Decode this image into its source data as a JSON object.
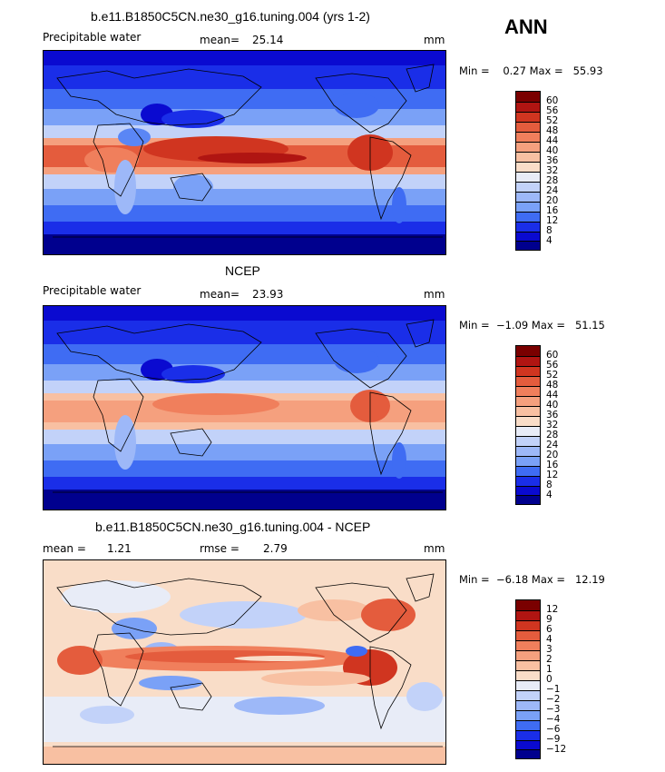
{
  "season": "ANN",
  "colors": {
    "blue_scale": [
      "#00008e",
      "#0a0ad0",
      "#1a2ee8",
      "#2a4ff0",
      "#3f6cf3",
      "#5a86f5",
      "#7aa1f7",
      "#9db8f8",
      "#c2d2f9",
      "#e8ecf7",
      "#f9ddc8",
      "#f8c0a2",
      "#f5a07e",
      "#f07f5c",
      "#e45c3d",
      "#d03520",
      "#b01512",
      "#7a0000"
    ]
  },
  "panels": [
    {
      "title": "b.e11.B1850C5CN.ne30_g16.tuning.004 (yrs 1-2)",
      "variable": "Precipitable water",
      "stat1_label": "mean=",
      "stat1_value": "25.14",
      "units": "mm",
      "min_max": "Min =    0.27 Max =   55.93",
      "colorbar_labels": [
        "60",
        "56",
        "52",
        "48",
        "44",
        "40",
        "36",
        "32",
        "28",
        "24",
        "20",
        "16",
        "12",
        "8",
        "4"
      ]
    },
    {
      "title": "NCEP",
      "variable": "Precipitable water",
      "stat1_label": "mean=",
      "stat1_value": "23.93",
      "units": "mm",
      "min_max": "Min =  −1.09 Max =   51.15",
      "colorbar_labels": [
        "60",
        "56",
        "52",
        "48",
        "44",
        "40",
        "36",
        "32",
        "28",
        "24",
        "20",
        "16",
        "12",
        "8",
        "4"
      ]
    },
    {
      "title": "b.e11.B1850C5CN.ne30_g16.tuning.004 - NCEP",
      "stat1_label": "mean =",
      "stat1_value": "1.21",
      "stat2_label": "rmse =",
      "stat2_value": "2.79",
      "units": "mm",
      "min_max": "Min =  −6.18 Max =   12.19",
      "colorbar_labels": [
        "12",
        "9",
        "6",
        "4",
        "3",
        "2",
        "1",
        "0",
        "−1",
        "−2",
        "−3",
        "−4",
        "−6",
        "−9",
        "−12"
      ]
    }
  ]
}
